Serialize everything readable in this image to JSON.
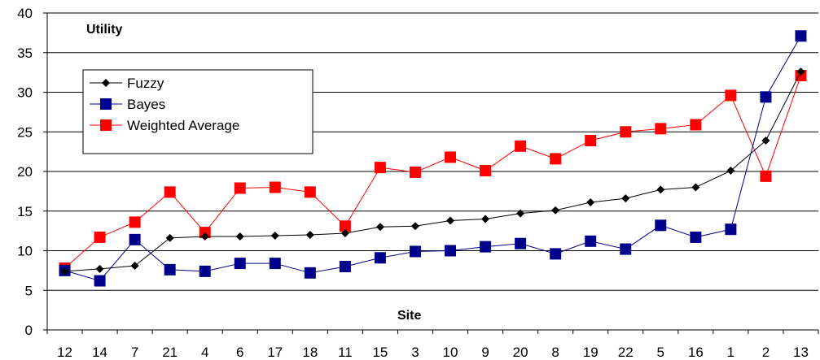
{
  "chart_data": {
    "type": "line",
    "ylabel": "Utility",
    "xlabel": "Site",
    "ylim": [
      0,
      40
    ],
    "yticks": [
      0,
      5,
      10,
      15,
      20,
      25,
      30,
      35,
      40
    ],
    "grid": "horizontal",
    "legend_position": "top-left",
    "categories": [
      "12",
      "14",
      "7",
      "21",
      "4",
      "6",
      "17",
      "18",
      "11",
      "15",
      "3",
      "10",
      "9",
      "20",
      "8",
      "19",
      "22",
      "5",
      "16",
      "1",
      "2",
      "13"
    ],
    "series": [
      {
        "name": "Fuzzy",
        "color": "#000000",
        "marker": "diamond",
        "values": [
          7.4,
          7.7,
          8.1,
          11.6,
          11.8,
          11.8,
          11.9,
          12.0,
          12.2,
          13.0,
          13.1,
          13.8,
          14.0,
          14.7,
          15.1,
          16.1,
          16.6,
          17.7,
          18.0,
          20.1,
          23.9,
          32.6
        ]
      },
      {
        "name": "Bayes",
        "color": "#00008B",
        "marker": "square",
        "values": [
          7.5,
          6.2,
          11.4,
          7.6,
          7.4,
          8.4,
          8.4,
          7.2,
          8.0,
          9.1,
          9.9,
          10.0,
          10.5,
          10.9,
          9.6,
          11.2,
          10.2,
          13.2,
          11.7,
          12.7,
          29.4,
          37.1
        ]
      },
      {
        "name": "Weighted Average",
        "color": "#FF0000",
        "marker": "square",
        "values": [
          7.8,
          11.7,
          13.6,
          17.4,
          12.3,
          17.9,
          18.0,
          17.4,
          13.1,
          20.5,
          19.9,
          21.8,
          20.1,
          23.2,
          21.6,
          23.9,
          25.0,
          25.4,
          25.9,
          29.6,
          19.4,
          32.1
        ]
      }
    ]
  }
}
